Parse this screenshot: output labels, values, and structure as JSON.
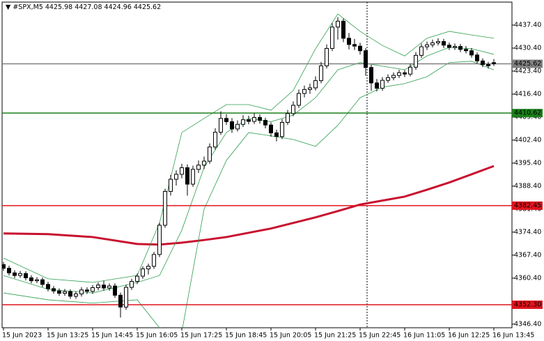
{
  "chart_data": {
    "type": "candlestick",
    "title": "#SPX,M5",
    "categories": [
      "15 Jun 2023",
      null,
      null,
      null,
      null,
      null,
      null,
      null,
      "15 Jun 13:25",
      null,
      null,
      null,
      null,
      null,
      null,
      null,
      "15 Jun 14:45",
      null,
      null,
      null,
      null,
      null,
      null,
      null,
      "15 Jun 16:05",
      null,
      null,
      null,
      null,
      null,
      null,
      null,
      "15 Jun 17:25",
      null,
      null,
      null,
      null,
      null,
      null,
      null,
      "15 Jun 18:45",
      null,
      null,
      null,
      null,
      null,
      null,
      null,
      "15 Jun 20:05",
      null,
      null,
      null,
      null,
      null,
      null,
      null,
      "15 Jun 21:25",
      null,
      null,
      null,
      null,
      null,
      null,
      null,
      "15 Jun 22:45",
      null,
      null,
      null,
      null,
      null,
      null,
      null,
      "16 Jun 11:05",
      null,
      null,
      null,
      null,
      null,
      null,
      null,
      "16 Jun 12:25",
      null,
      null,
      null,
      null,
      null,
      null,
      null,
      "16 Jun 13:45"
    ],
    "candles": [
      [
        4364.5,
        4365.3,
        4362.6,
        4363.4
      ],
      [
        4363.4,
        4364.2,
        4361.2,
        4362.0
      ],
      [
        4362.0,
        4362.8,
        4360.4,
        4361.2
      ],
      [
        4361.2,
        4362.6,
        4360.5,
        4361.8
      ],
      [
        4361.8,
        4362.5,
        4359.7,
        4360.5
      ],
      [
        4360.5,
        4361.3,
        4358.8,
        4359.6
      ],
      [
        4359.6,
        4360.7,
        4358.9,
        4359.9
      ],
      [
        4359.9,
        4360.6,
        4357.7,
        4358.5
      ],
      [
        4358.5,
        4359.3,
        4356.4,
        4357.2
      ],
      [
        4357.2,
        4358.0,
        4355.7,
        4356.5
      ],
      [
        4356.5,
        4357.3,
        4355.0,
        4355.8
      ],
      [
        4355.8,
        4357.1,
        4355.0,
        4356.3
      ],
      [
        4356.3,
        4357.0,
        4354.1,
        4354.9
      ],
      [
        4354.9,
        4356.4,
        4354.1,
        4355.6
      ],
      [
        4355.6,
        4357.6,
        4354.8,
        4356.8
      ],
      [
        4356.8,
        4357.6,
        4355.6,
        4356.4
      ],
      [
        4356.4,
        4358.3,
        4355.6,
        4357.5
      ],
      [
        4357.5,
        4359.1,
        4356.7,
        4358.3
      ],
      [
        4358.3,
        4359.6,
        4356.6,
        4357.4
      ],
      [
        4357.4,
        4358.8,
        4356.6,
        4358.0
      ],
      [
        4358.0,
        4358.8,
        4354.4,
        4355.2
      ],
      [
        4355.2,
        4356.0,
        4348.4,
        4351.6
      ],
      [
        4351.6,
        4358.4,
        4350.8,
        4357.6
      ],
      [
        4357.6,
        4360.2,
        4356.8,
        4359.4
      ],
      [
        4359.4,
        4361.8,
        4358.6,
        4361.0
      ],
      [
        4361.0,
        4364.0,
        4360.2,
        4363.2
      ],
      [
        4363.2,
        4364.8,
        4361.5,
        4364.0
      ],
      [
        4364.0,
        4368.4,
        4363.2,
        4367.6
      ],
      [
        4367.6,
        4377.3,
        4366.8,
        4376.5
      ],
      [
        4376.5,
        4387.6,
        4375.7,
        4386.8
      ],
      [
        4386.8,
        4391.8,
        4385.5,
        4390.5
      ],
      [
        4390.5,
        4393.2,
        4388.6,
        4392.0
      ],
      [
        4392.0,
        4395.2,
        4390.8,
        4394.0
      ],
      [
        4394.0,
        4395.0,
        4385.5,
        4389.0
      ],
      [
        4389.0,
        4394.6,
        4388.2,
        4393.5
      ],
      [
        4393.5,
        4396.2,
        4392.4,
        4394.8
      ],
      [
        4394.8,
        4397.4,
        4393.6,
        4396.0
      ],
      [
        4396.0,
        4401.4,
        4395.2,
        4400.3
      ],
      [
        4400.3,
        4406.0,
        4399.5,
        4404.8
      ],
      [
        4404.8,
        4411.2,
        4404.0,
        4409.0
      ],
      [
        4409.0,
        4410.3,
        4407.0,
        4408.0
      ],
      [
        4408.0,
        4409.1,
        4404.6,
        4405.8
      ],
      [
        4405.8,
        4408.4,
        4405.0,
        4407.2
      ],
      [
        4407.2,
        4410.0,
        4406.4,
        4408.6
      ],
      [
        4408.6,
        4409.8,
        4407.2,
        4408.1
      ],
      [
        4408.1,
        4410.6,
        4407.3,
        4409.3
      ],
      [
        4409.3,
        4410.2,
        4407.4,
        4408.4
      ],
      [
        4408.4,
        4409.2,
        4406.0,
        4407.0
      ],
      [
        4407.0,
        4407.8,
        4403.4,
        4404.6
      ],
      [
        4404.6,
        4405.6,
        4402.0,
        4403.5
      ],
      [
        4403.5,
        4408.8,
        4402.7,
        4407.8
      ],
      [
        4407.8,
        4411.6,
        4407.0,
        4410.5
      ],
      [
        4410.5,
        4414.2,
        4409.7,
        4413.0
      ],
      [
        4413.0,
        4417.8,
        4412.2,
        4416.6
      ],
      [
        4416.6,
        4419.0,
        4415.4,
        4417.8
      ],
      [
        4417.8,
        4419.6,
        4416.5,
        4418.3
      ],
      [
        4418.3,
        4421.8,
        4417.5,
        4420.5
      ],
      [
        4420.5,
        4426.2,
        4419.7,
        4425.0
      ],
      [
        4425.0,
        4431.5,
        4424.2,
        4430.3
      ],
      [
        4430.3,
        4438.0,
        4429.5,
        4436.8
      ],
      [
        4436.8,
        4439.8,
        4433.0,
        4438.6
      ],
      [
        4438.6,
        4439.4,
        4432.2,
        4433.4
      ],
      [
        4433.4,
        4435.0,
        4430.0,
        4431.5
      ],
      [
        4431.5,
        4433.2,
        4429.8,
        4431.0
      ],
      [
        4431.0,
        4432.0,
        4428.4,
        4429.6
      ],
      [
        4429.6,
        4430.4,
        4422.0,
        4424.5
      ],
      [
        4424.5,
        4425.3,
        4417.4,
        4419.8
      ],
      [
        4419.8,
        4421.0,
        4417.2,
        4418.2
      ],
      [
        4418.2,
        4421.6,
        4417.4,
        4420.6
      ],
      [
        4420.6,
        4422.4,
        4419.8,
        4421.4
      ],
      [
        4421.4,
        4423.0,
        4420.6,
        4422.1
      ],
      [
        4422.1,
        4423.8,
        4421.3,
        4422.9
      ],
      [
        4422.9,
        4423.7,
        4421.6,
        4422.5
      ],
      [
        4422.5,
        4425.6,
        4421.8,
        4424.6
      ],
      [
        4424.6,
        4429.2,
        4423.8,
        4428.2
      ],
      [
        4428.2,
        4431.8,
        4427.4,
        4430.8
      ],
      [
        4430.8,
        4432.4,
        4429.8,
        4431.4
      ],
      [
        4431.4,
        4433.0,
        4430.6,
        4432.0
      ],
      [
        4432.0,
        4433.4,
        4431.2,
        4432.4
      ],
      [
        4432.4,
        4433.2,
        4430.4,
        4431.3
      ],
      [
        4431.3,
        4432.1,
        4429.8,
        4430.6
      ],
      [
        4430.6,
        4431.8,
        4429.8,
        4430.9
      ],
      [
        4430.9,
        4431.7,
        4429.2,
        4430.0
      ],
      [
        4430.0,
        4431.0,
        4428.8,
        4429.6
      ],
      [
        4429.6,
        4430.4,
        4427.5,
        4428.3
      ],
      [
        4428.3,
        4429.1,
        4425.7,
        4426.5
      ],
      [
        4426.5,
        4427.3,
        4424.6,
        4425.4
      ],
      [
        4425.4,
        4426.2,
        4424.2,
        4425.0
      ],
      [
        4425.98,
        4427.08,
        4424.96,
        4425.62
      ]
    ],
    "indicator_x": [
      0,
      8,
      16,
      24,
      28,
      32,
      36,
      40,
      44,
      48,
      52,
      56,
      60,
      64,
      68,
      72,
      76,
      80,
      84,
      88
    ],
    "indicators": [
      {
        "color": "#c8102e",
        "width": 3,
        "values": [
          4374.0,
          4373.8,
          4372.9,
          4370.8,
          4370.6,
          4371.2,
          4372.0,
          4372.9,
          4374.2,
          4375.5,
          4377.2,
          4378.9,
          4380.8,
          4382.8,
          4384.0,
          4385.2,
          4387.3,
          4389.5,
          4392.0,
          4394.5
        ]
      },
      {
        "color": "#2e9e4e",
        "width": 0.8,
        "values": [
          4366.5,
          4360.2,
          4359.1,
          4361.2,
          4377.2,
          4404.7,
          4409.0,
          4413.2,
          4413.2,
          4411.5,
          4417.5,
          4430.2,
          4440.8,
          4435.5,
          4431.2,
          4428.0,
          4433.4,
          4435.5,
          4434.4,
          4433.4
        ]
      },
      {
        "color": "#2e9e4e",
        "width": 0.8,
        "values": [
          4361.2,
          4357.0,
          4355.9,
          4359.1,
          4361.2,
          4375.0,
          4394.1,
          4404.7,
          4409.0,
          4408.0,
          4410.0,
          4415.3,
          4423.8,
          4426.0,
          4424.9,
          4423.8,
          4428.0,
          4430.6,
          4430.2,
          4428.5
        ]
      },
      {
        "color": "#2e9e4e",
        "width": 0.8,
        "values": [
          4355.9,
          4353.8,
          4352.8,
          4353.8,
          4345.3,
          4344.0,
          4381.4,
          4396.2,
          4404.7,
          4403.7,
          4402.6,
          4400.5,
          4406.9,
          4415.3,
          4418.5,
          4419.6,
          4421.7,
          4426.0,
          4426.4,
          4423.8
        ]
      }
    ],
    "levels": [
      {
        "value": 4425.62,
        "label": "4425.62",
        "color": "#808080"
      },
      {
        "value": 4410.62,
        "label": "4410.62",
        "color": "#1a7f1a"
      },
      {
        "value": 4382.45,
        "label": "4382.45",
        "color": "#e0141e"
      },
      {
        "value": 4352.3,
        "label": "4352.30",
        "color": "#e0141e"
      }
    ],
    "ylim": [
      4345.3,
      4444.4
    ],
    "yticks": [
      {
        "value": 4437.4,
        "label": "4437.40"
      },
      {
        "value": 4430.4,
        "label": "4430.40"
      },
      {
        "value": 4423.4,
        "label": "4423.40"
      },
      {
        "value": 4416.4,
        "label": "4416.40"
      },
      {
        "value": 4409.4,
        "label": "4409.40"
      },
      {
        "value": 4402.4,
        "label": "4402.40"
      },
      {
        "value": 4395.4,
        "label": "4395.40"
      },
      {
        "value": 4388.4,
        "label": "4388.40"
      },
      {
        "value": 4381.4,
        "label": "4381.40"
      },
      {
        "value": 4374.4,
        "label": "4374.40"
      },
      {
        "value": 4367.4,
        "label": "4367.40"
      },
      {
        "value": 4360.4,
        "label": "4360.40"
      },
      {
        "value": 4346.4,
        "label": "4346.40"
      }
    ]
  }
}
